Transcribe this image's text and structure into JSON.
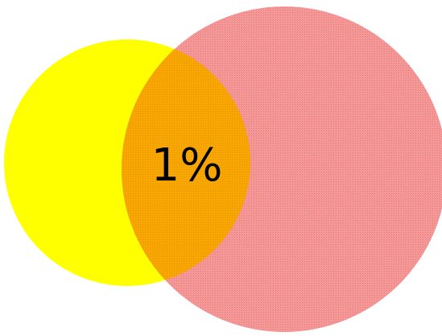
{
  "diagram": {
    "type": "venn",
    "sets": [
      {
        "id": "left",
        "color": "#ffff00"
      },
      {
        "id": "right",
        "color": "#f25a5a"
      }
    ],
    "overlap": {
      "label": "1%",
      "color": "#ffa500"
    }
  }
}
